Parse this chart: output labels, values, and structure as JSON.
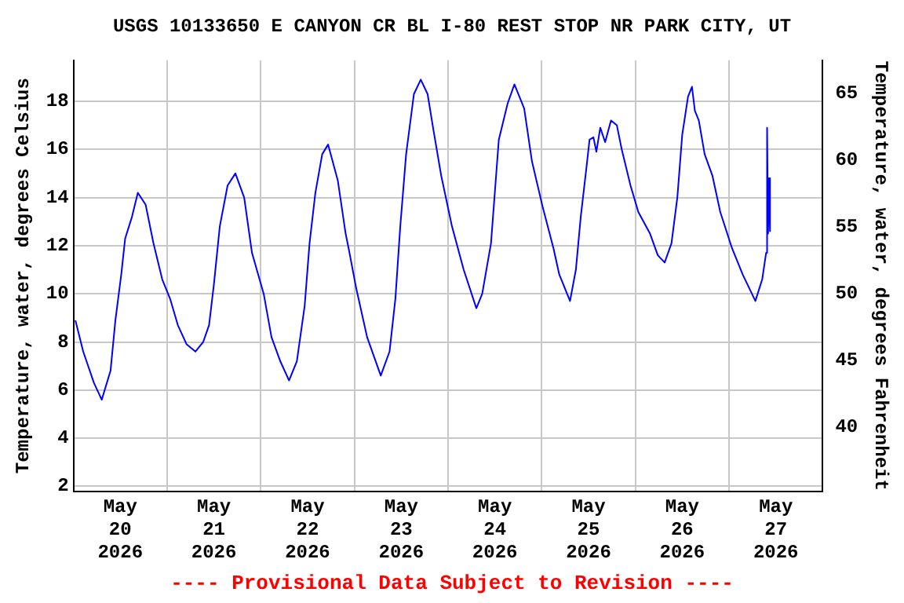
{
  "chart_data": {
    "type": "line",
    "title": "USGS 10133650 E CANYON CR BL I-80 REST STOP NR PARK CITY, UT",
    "ylabel": "Temperature, water, degrees Celsius",
    "y2label": "Temperature, water, degrees Fahrenheit",
    "x": [
      "2026-05-20T00:30",
      "2026-05-20T02:30",
      "2026-05-20T05:15",
      "2026-05-20T07:15",
      "2026-05-20T09:30",
      "2026-05-20T10:45",
      "2026-05-20T12:15",
      "2026-05-20T13:15",
      "2026-05-20T15:00",
      "2026-05-20T16:30",
      "2026-05-20T18:30",
      "2026-05-20T20:30",
      "2026-05-20T22:45",
      "2026-05-21T00:45",
      "2026-05-21T02:45",
      "2026-05-21T05:00",
      "2026-05-21T07:15",
      "2026-05-21T09:15",
      "2026-05-21T10:45",
      "2026-05-21T12:00",
      "2026-05-21T13:30",
      "2026-05-21T15:30",
      "2026-05-21T17:30",
      "2026-05-21T19:45",
      "2026-05-21T21:45",
      "2026-05-22T00:45",
      "2026-05-22T02:45",
      "2026-05-22T05:00",
      "2026-05-22T07:15",
      "2026-05-22T09:15",
      "2026-05-22T11:15",
      "2026-05-22T12:30",
      "2026-05-22T14:00",
      "2026-05-22T15:45",
      "2026-05-22T17:15",
      "2026-05-22T19:45",
      "2026-05-22T21:45",
      "2026-05-22T22:30",
      "2026-05-23T00:30",
      "2026-05-23T03:15",
      "2026-05-23T06:45",
      "2026-05-23T09:00",
      "2026-05-23T10:30",
      "2026-05-23T11:45",
      "2026-05-23T13:15",
      "2026-05-23T15:15",
      "2026-05-23T17:00",
      "2026-05-23T18:45",
      "2026-05-23T20:15",
      "2026-05-23T22:15",
      "2026-05-24T01:00",
      "2026-05-24T04:00",
      "2026-05-24T07:15",
      "2026-05-24T08:45",
      "2026-05-24T11:00",
      "2026-05-24T13:00",
      "2026-05-24T15:15",
      "2026-05-24T17:00",
      "2026-05-24T19:30",
      "2026-05-24T21:30",
      "2026-05-25T00:15",
      "2026-05-25T03:00",
      "2026-05-25T04:30",
      "2026-05-25T07:15",
      "2026-05-25T08:45",
      "2026-05-25T10:00",
      "2026-05-25T11:30",
      "2026-05-25T12:15",
      "2026-05-25T13:15",
      "2026-05-25T14:00",
      "2026-05-25T15:00",
      "2026-05-25T16:15",
      "2026-05-25T17:45",
      "2026-05-25T19:15",
      "2026-05-25T20:30",
      "2026-05-25T22:45",
      "2026-05-26T00:45",
      "2026-05-26T03:45",
      "2026-05-26T05:45",
      "2026-05-26T07:30",
      "2026-05-26T09:15",
      "2026-05-26T10:45",
      "2026-05-26T12:00",
      "2026-05-26T13:30",
      "2026-05-26T14:30",
      "2026-05-26T15:15",
      "2026-05-26T16:15",
      "2026-05-26T17:45",
      "2026-05-26T19:45",
      "2026-05-26T21:45",
      "2026-05-27T00:45",
      "2026-05-27T03:30",
      "2026-05-27T06:45",
      "2026-05-27T08:30",
      "2026-05-27T09:30",
      "2026-05-27T09:45",
      "2026-05-27T10:00",
      "2026-05-27T10:15",
      "2026-05-27T10:30"
    ],
    "values": [
      8.9,
      7.6,
      6.3,
      5.6,
      6.8,
      8.9,
      10.8,
      12.3,
      13.2,
      14.2,
      13.7,
      12.1,
      10.6,
      9.8,
      8.7,
      7.9,
      7.6,
      8.0,
      8.7,
      10.4,
      12.8,
      14.5,
      15.0,
      14.0,
      11.7,
      10.0,
      8.2,
      7.2,
      6.4,
      7.2,
      9.5,
      12.1,
      14.2,
      15.8,
      16.2,
      14.7,
      12.5,
      11.9,
      10.2,
      8.2,
      6.6,
      7.6,
      9.8,
      12.8,
      15.8,
      18.3,
      18.9,
      18.3,
      16.8,
      14.9,
      12.8,
      11.0,
      9.4,
      10.0,
      12.1,
      16.4,
      17.9,
      18.7,
      17.7,
      15.5,
      13.6,
      11.9,
      10.8,
      9.7,
      11.0,
      13.2,
      15.3,
      16.4,
      16.5,
      15.9,
      16.9,
      16.3,
      17.2,
      17.0,
      16.0,
      14.5,
      13.4,
      12.5,
      11.6,
      11.3,
      12.1,
      14.0,
      16.6,
      18.2,
      18.6,
      17.6,
      17.2,
      15.8,
      14.9,
      13.4,
      11.9,
      10.8,
      9.7,
      10.6,
      11.7,
      16.9,
      12.5,
      14.8,
      12.6
    ],
    "color": "#0000ff",
    "xlim": [
      "2026-05-20T00:00",
      "2026-05-28T00:00"
    ],
    "xticks": [
      {
        "value": "2026-05-20T12:00",
        "label": "May\n20\n2026"
      },
      {
        "value": "2026-05-21T00:00",
        "label": null
      },
      {
        "value": "2026-05-21T12:00",
        "label": "May\n21\n2026"
      },
      {
        "value": "2026-05-22T00:00",
        "label": null
      },
      {
        "value": "2026-05-22T12:00",
        "label": "May\n22\n2026"
      },
      {
        "value": "2026-05-23T00:00",
        "label": null
      },
      {
        "value": "2026-05-23T12:00",
        "label": "May\n23\n2026"
      },
      {
        "value": "2026-05-24T00:00",
        "label": null
      },
      {
        "value": "2026-05-24T12:00",
        "label": "May\n24\n2026"
      },
      {
        "value": "2026-05-25T00:00",
        "label": null
      },
      {
        "value": "2026-05-25T12:00",
        "label": "May\n25\n2026"
      },
      {
        "value": "2026-05-26T00:00",
        "label": null
      },
      {
        "value": "2026-05-26T12:00",
        "label": "May\n26\n2026"
      },
      {
        "value": "2026-05-27T00:00",
        "label": null
      },
      {
        "value": "2026-05-27T12:00",
        "label": "May\n27\n2026"
      }
    ],
    "ylim": [
      1.8,
      19.7
    ],
    "yticks": [
      2,
      4,
      6,
      8,
      10,
      12,
      14,
      16,
      18
    ],
    "y2lim": [
      35.2,
      67.5
    ],
    "y2ticks": [
      40,
      45,
      50,
      55,
      60,
      65
    ],
    "grid": true,
    "annotations": [
      "---- Provisional Data Subject to Revision ----"
    ]
  }
}
